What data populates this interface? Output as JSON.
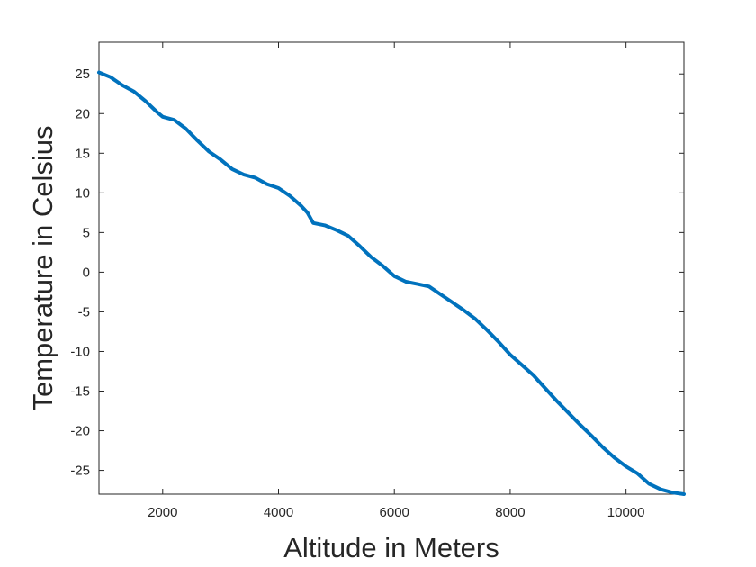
{
  "chart_data": {
    "type": "line",
    "title": "",
    "xlabel": "Altitude in Meters",
    "ylabel": "Temperature in Celsius",
    "xlim": [
      900,
      11000
    ],
    "ylim": [
      -28,
      29
    ],
    "xticks": [
      2000,
      4000,
      6000,
      8000,
      10000
    ],
    "yticks": [
      25,
      20,
      15,
      10,
      5,
      0,
      -5,
      -10,
      -15,
      -20,
      -25
    ],
    "grid": false,
    "legend": "none",
    "line_color": "#0072BD",
    "series": [
      {
        "x": [
          900,
          1100,
          1300,
          1500,
          1700,
          1900,
          2000,
          2200,
          2400,
          2600,
          2800,
          3000,
          3200,
          3400,
          3600,
          3800,
          4000,
          4200,
          4400,
          4500,
          4600,
          4800,
          5000,
          5200,
          5400,
          5600,
          5800,
          6000,
          6200,
          6400,
          6600,
          6800,
          7000,
          7200,
          7400,
          7600,
          7800,
          8000,
          8200,
          8400,
          8600,
          8800,
          9000,
          9200,
          9400,
          9600,
          9800,
          10000,
          10200,
          10400,
          10600,
          10800,
          11000
        ],
        "values": [
          25.2,
          24.6,
          23.6,
          22.8,
          21.6,
          20.2,
          19.6,
          19.2,
          18.1,
          16.6,
          15.2,
          14.2,
          13.0,
          12.3,
          11.9,
          11.1,
          10.6,
          9.6,
          8.3,
          7.5,
          6.2,
          5.9,
          5.3,
          4.6,
          3.3,
          1.9,
          0.8,
          -0.5,
          -1.2,
          -1.5,
          -1.8,
          -2.8,
          -3.8,
          -4.8,
          -5.9,
          -7.3,
          -8.8,
          -10.4,
          -11.7,
          -13.0,
          -14.6,
          -16.2,
          -17.7,
          -19.2,
          -20.6,
          -22.1,
          -23.4,
          -24.5,
          -25.4,
          -26.7,
          -27.4,
          -27.8,
          -28.0
        ]
      }
    ]
  }
}
